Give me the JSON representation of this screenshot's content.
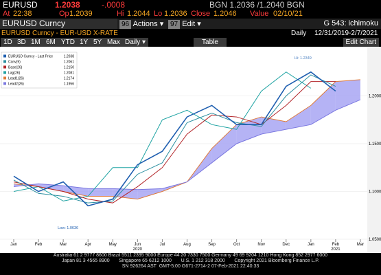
{
  "quote": {
    "ticker": "EURUSD",
    "last": "1.2038",
    "change": "-.0008",
    "bid_ask": "BGN  1.2036 /1.2040  BGN"
  },
  "quote_row": [
    [
      "At",
      "22:38"
    ],
    [
      "Op",
      "1.2039"
    ],
    [
      "Hi",
      "1.2044"
    ],
    [
      "Lo",
      "1.2036"
    ],
    [
      "Close",
      "1.2046"
    ],
    [
      "Value",
      "02/10/21"
    ]
  ],
  "toolbar": {
    "security": "EURUSD Curncy",
    "actions_code": "96",
    "actions": "Actions ▾",
    "edit_code": "97",
    "edit": "Edit ▾",
    "chart_name": "G 543: ichimoku"
  },
  "subheader": {
    "description": "EURUSD Curncy - EUR-USD X-RATE",
    "frequency": "Daily",
    "date_range": "12/31/2019-2/7/2021"
  },
  "periods": [
    "1D",
    "3D",
    "1M",
    "6M",
    "YTD",
    "1Y",
    "5Y",
    "Max"
  ],
  "period_frequency": "Daily ▾",
  "table_button": "Table",
  "edit_chart_button": "Edit Chart",
  "chart_data": {
    "type": "line",
    "categories": [
      "Jan",
      "Feb",
      "Mar",
      "Apr",
      "May",
      "Jun",
      "Jul",
      "Aug",
      "Sep",
      "Oct",
      "Nov",
      "Dec",
      "Jan",
      "Feb",
      "Mar"
    ],
    "years": [
      {
        "label": "2020",
        "at": "Jun"
      },
      {
        "label": "2021",
        "at": "Feb"
      }
    ],
    "ylim": [
      1.05,
      1.25
    ],
    "yticks": [
      {
        "value": 1.05,
        "label": "1.0500"
      },
      {
        "value": 1.1,
        "label": "1.1000"
      },
      {
        "value": 1.15,
        "label": "1.1500"
      },
      {
        "value": 1.2,
        "label": "1.2000"
      }
    ],
    "series": [
      {
        "name": "EURUSD Curncy - Last Price",
        "last": "1.2038",
        "color": "#1f5fb0",
        "values": [
          1.116,
          1.1,
          1.11,
          1.085,
          1.092,
          1.128,
          1.142,
          1.178,
          1.19,
          1.17,
          1.17,
          1.21,
          1.225,
          1.205,
          null
        ]
      },
      {
        "name": "Conv(9)",
        "last": "1.2061",
        "color": "#2b8fa0",
        "values": [
          1.112,
          1.098,
          1.095,
          1.088,
          1.09,
          1.118,
          1.13,
          1.172,
          1.182,
          1.172,
          1.168,
          1.2,
          1.222,
          1.21,
          null
        ]
      },
      {
        "name": "Base(26)",
        "last": "1.2150",
        "color": "#b3262a",
        "values": [
          1.11,
          1.105,
          1.1,
          1.092,
          1.088,
          1.105,
          1.125,
          1.16,
          1.18,
          1.178,
          1.17,
          1.19,
          1.215,
          1.215,
          null
        ]
      },
      {
        "name": "Lag(26)",
        "last": "1.2081",
        "color": "#1fa3a3",
        "values": [
          1.1,
          1.105,
          1.09,
          1.095,
          1.125,
          1.125,
          1.175,
          1.185,
          1.17,
          1.165,
          1.205,
          1.225,
          1.208,
          null,
          null
        ]
      },
      {
        "name": "Lead1(26)",
        "last": "1.2174",
        "color": "#e07b39",
        "values": [
          1.108,
          1.105,
          1.1,
          1.095,
          1.095,
          1.092,
          1.1,
          1.11,
          1.145,
          1.17,
          1.178,
          1.173,
          1.19,
          1.215,
          1.217
        ]
      },
      {
        "name": "Lead2(26)",
        "last": "1.1956",
        "color": "#7b78e0",
        "values": [
          1.105,
          1.108,
          1.106,
          1.103,
          1.103,
          1.102,
          1.103,
          1.11,
          1.13,
          1.15,
          1.16,
          1.165,
          1.17,
          1.185,
          1.196
        ]
      }
    ],
    "cloud_color": "#9c9af2",
    "annotations": [
      {
        "text": "Hi: 1.2349",
        "at": "Dec"
      },
      {
        "text": "Low: 1.0636",
        "at": "Mar"
      }
    ]
  },
  "footer": [
    "Australia 61 2 9777 8600 Brazil 5511 2395 9000 Europe 44 20 7330 7500 Germany 49 69 9204 1210 Hong Kong 852 2977 6000",
    "Japan 81 3 4565 8900       Singapore 65 6212 1000       U.S. 1 212 318 2000       Copyright 2021 Bloomberg Finance L.P.",
    "SN 926264 AST  GMT-5:00 G671-2714-2 07-Feb-2021 22:40:33"
  ]
}
